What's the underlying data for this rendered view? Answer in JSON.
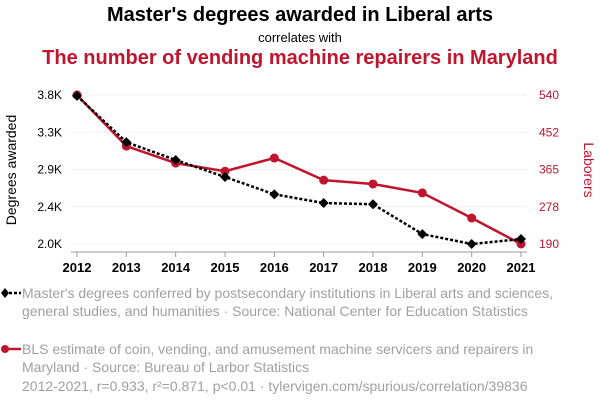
{
  "title": "Master's degrees awarded in Liberal arts",
  "subtitle": "correlates with",
  "title2": "The number of vending machine repairers in Maryland",
  "chart_data": {
    "type": "line",
    "x": [
      2012,
      2013,
      2014,
      2015,
      2016,
      2017,
      2018,
      2019,
      2020,
      2021
    ],
    "series": [
      {
        "name": "Master's degrees conferred by postsecondary institutions in Liberal arts and sciences, general studies, and humanities · Source: National Center for Education Statistics",
        "axis": "left",
        "color": "#000000",
        "values": [
          3790,
          3230,
          3015,
          2810,
          2600,
          2495,
          2480,
          2120,
          2000,
          2060
        ]
      },
      {
        "name": "BLS estimate of coin, vending, and amusement machine servicers and repairers in Maryland · Source: Bureau of Larbor Statistics",
        "axis": "right",
        "color": "#c0152f",
        "values": [
          540,
          420,
          380,
          361,
          392,
          340,
          331,
          310,
          251,
          190
        ]
      }
    ],
    "ylabel": "Degrees awarded",
    "y2label": "Laborers",
    "ylim": [
      2000,
      3800
    ],
    "y2lim": [
      190,
      540
    ],
    "yticks": [
      "3.8K",
      "3.3K",
      "2.9K",
      "2.4K",
      "2.0K"
    ],
    "y2ticks": [
      "540",
      "452",
      "365",
      "278",
      "190"
    ],
    "xticks": [
      "2012",
      "2013",
      "2014",
      "2015",
      "2016",
      "2017",
      "2018",
      "2019",
      "2020",
      "2021"
    ],
    "legend": "bottom"
  },
  "footer": "2012-2021, r=0.933, r²=0.871, p<0.01 · tylervigen.com/spurious/correlation/39836"
}
